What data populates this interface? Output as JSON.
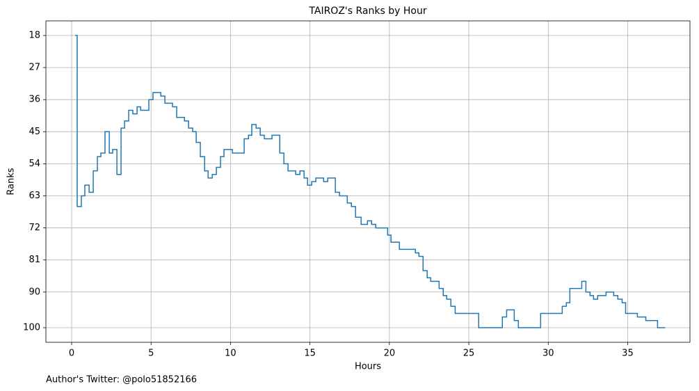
{
  "chart_data": {
    "type": "line",
    "step": "post",
    "title": "TAIROZ's Ranks by Hour",
    "xlabel": "Hours",
    "ylabel": "Ranks",
    "footer": "Author's Twitter: @polo51852166",
    "color": "#1f77b4",
    "grid": true,
    "y_inverted": true,
    "xlim": [
      -1.62,
      38.92
    ],
    "ylim": [
      104.1,
      13.9
    ],
    "xticks": [
      0,
      5,
      10,
      15,
      20,
      25,
      30,
      35
    ],
    "yticks": [
      18,
      27,
      36,
      45,
      54,
      63,
      72,
      81,
      90,
      100
    ],
    "x": [
      0.22,
      0.35,
      0.61,
      0.83,
      1.1,
      1.36,
      1.62,
      1.84,
      2.1,
      2.37,
      2.58,
      2.85,
      3.11,
      3.33,
      3.59,
      3.85,
      4.12,
      4.34,
      4.86,
      5.12,
      5.61,
      5.87,
      6.35,
      6.61,
      7.1,
      7.36,
      7.62,
      7.84,
      8.1,
      8.37,
      8.59,
      8.85,
      9.11,
      9.37,
      9.59,
      10.12,
      10.86,
      11.13,
      11.34,
      11.61,
      11.87,
      12.13,
      12.61,
      13.1,
      13.36,
      13.62,
      14.1,
      14.37,
      14.63,
      14.85,
      15.11,
      15.37,
      15.86,
      16.12,
      16.6,
      16.86,
      17.35,
      17.61,
      17.87,
      18.22,
      18.62,
      18.88,
      19.14,
      19.89,
      20.1,
      20.63,
      21.64,
      21.86,
      22.12,
      22.38,
      22.6,
      23.13,
      23.39,
      23.61,
      23.87,
      24.14,
      25.62,
      27.11,
      27.38,
      27.86,
      28.12,
      29.52,
      30.88,
      31.14,
      31.36,
      32.11,
      32.37,
      32.63,
      32.85,
      33.11,
      33.64,
      34.12,
      34.38,
      34.65,
      34.87,
      35.61,
      36.14,
      36.88,
      37.36
    ],
    "values": [
      18,
      66,
      63,
      60,
      62,
      56,
      52,
      51,
      45,
      51,
      50,
      57,
      44,
      42,
      39,
      40,
      38,
      39,
      36,
      34,
      35,
      37,
      38,
      41,
      42,
      44,
      45,
      48,
      52,
      56,
      58,
      57,
      55,
      52,
      50,
      51,
      47,
      46,
      43,
      44,
      46,
      47,
      46,
      51,
      54,
      56,
      57,
      56,
      58,
      60,
      59,
      58,
      59,
      58,
      62,
      63,
      65,
      66,
      69,
      71,
      70,
      71,
      72,
      74,
      76,
      78,
      79,
      80,
      84,
      86,
      87,
      89,
      91,
      92,
      94,
      96,
      100,
      97,
      95,
      98,
      100,
      96,
      94,
      93,
      89,
      87,
      90,
      91,
      92,
      91,
      90,
      91,
      92,
      93,
      96,
      97,
      98,
      100,
      100
    ]
  }
}
